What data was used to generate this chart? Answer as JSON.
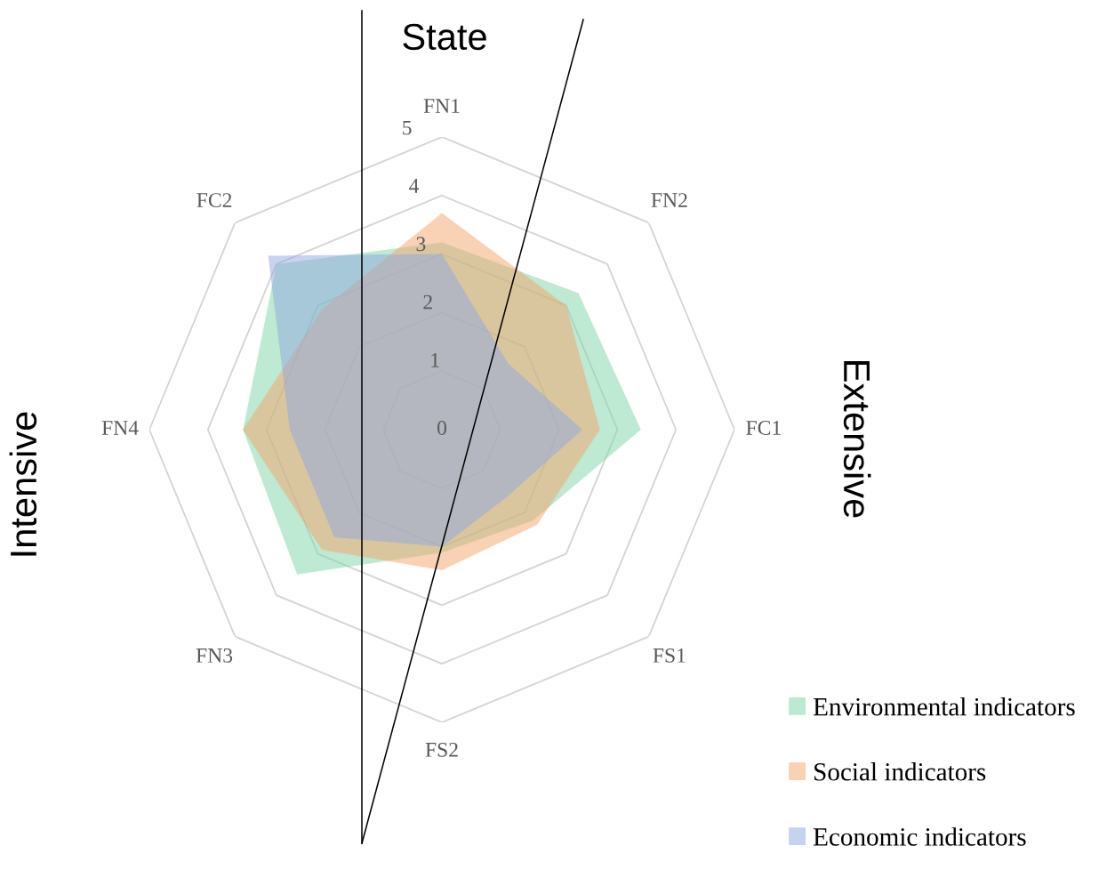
{
  "chart_data": {
    "type": "radar",
    "categories": [
      "FN1",
      "FN2",
      "FC1",
      "FS1",
      "FS2",
      "FN3",
      "FN4",
      "FC2"
    ],
    "series": [
      {
        "name": "Environmental indicators",
        "color": "#7dd3a6",
        "values": [
          3.2,
          3.3,
          3.4,
          2.2,
          2.1,
          3.5,
          3.4,
          4.0
        ]
      },
      {
        "name": "Social indicators",
        "color": "#f4a46c",
        "values": [
          3.7,
          3.0,
          2.7,
          2.3,
          2.4,
          2.9,
          3.4,
          2.9
        ]
      },
      {
        "name": "Economic indicators",
        "color": "#8fa8e0",
        "values": [
          3.0,
          1.6,
          2.4,
          1.6,
          2.0,
          2.6,
          2.6,
          4.2
        ]
      }
    ],
    "ylim": [
      0,
      5
    ],
    "yticks": [
      0,
      1,
      2,
      3,
      4,
      5
    ],
    "grid": true,
    "legend": "bottom right",
    "annotations": [
      "State",
      "Extensive",
      "Intensive"
    ]
  }
}
